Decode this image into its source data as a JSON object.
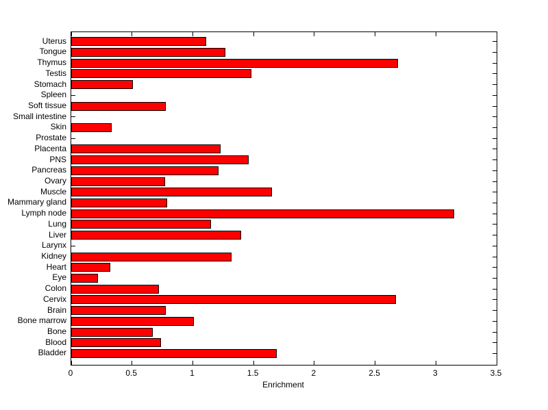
{
  "figure": {
    "xlabel": "Enrichment"
  },
  "chart_data": {
    "type": "bar",
    "orientation": "horizontal",
    "title": "",
    "xlabel": "Enrichment",
    "ylabel": "",
    "xlim": [
      0,
      3.5
    ],
    "xticks": [
      0,
      0.5,
      1,
      1.5,
      2,
      2.5,
      3,
      3.5
    ],
    "xtick_labels": [
      "0",
      "0.5",
      "1",
      "1.5",
      "2",
      "2.5",
      "3",
      "3.5"
    ],
    "grid": false,
    "legend": "none",
    "bar_color": "#ff0000",
    "bar_edge_color": "#000000",
    "categories": [
      "Uterus",
      "Tongue",
      "Thymus",
      "Testis",
      "Stomach",
      "Spleen",
      "Soft tissue",
      "Small intestine",
      "Skin",
      "Prostate",
      "Placenta",
      "PNS",
      "Pancreas",
      "Ovary",
      "Muscle",
      "Mammary gland",
      "Lymph node",
      "Lung",
      "Liver",
      "Larynx",
      "Kidney",
      "Heart",
      "Eye",
      "Colon",
      "Cervix",
      "Brain",
      "Bone marrow",
      "Bone",
      "Blood",
      "Bladder"
    ],
    "values": [
      1.11,
      1.27,
      2.69,
      1.48,
      0.51,
      0,
      0.78,
      0,
      0.33,
      0,
      1.23,
      1.46,
      1.21,
      0.77,
      1.65,
      0.79,
      3.15,
      1.15,
      1.4,
      0,
      1.32,
      0.32,
      0.22,
      0.72,
      2.67,
      0.78,
      1.01,
      0.67,
      0.74,
      1.69
    ]
  }
}
